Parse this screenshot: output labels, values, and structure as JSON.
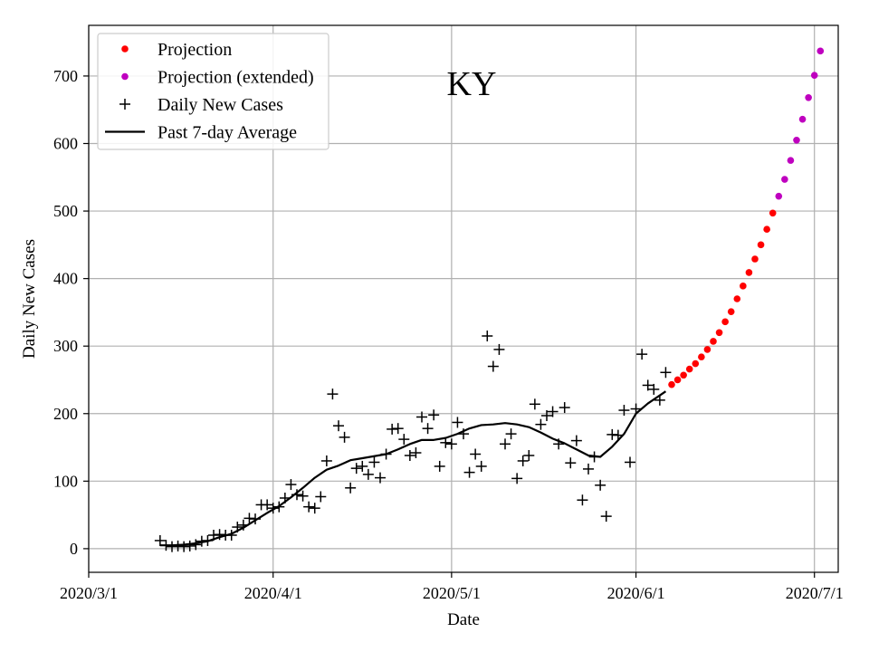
{
  "chart_data": {
    "type": "scatter",
    "title": "KY",
    "xlabel": "Date",
    "ylabel": "Daily New Cases",
    "grid": true,
    "legend_position": "top-left",
    "x_ticks": [
      "2020/3/1",
      "2020/4/1",
      "2020/5/1",
      "2020/6/1",
      "2020/7/1"
    ],
    "y_ticks": [
      0,
      100,
      200,
      300,
      400,
      500,
      600,
      700
    ],
    "xlim": [
      "2020-03-01",
      "2020-07-05"
    ],
    "ylim": [
      -35,
      775
    ],
    "series": [
      {
        "name": "Daily New Cases",
        "kind": "scatter",
        "marker": "plus",
        "color": "#000000",
        "points": [
          [
            "2020-03-13",
            12
          ],
          [
            "2020-03-14",
            5
          ],
          [
            "2020-03-15",
            3
          ],
          [
            "2020-03-16",
            4
          ],
          [
            "2020-03-17",
            3
          ],
          [
            "2020-03-18",
            4
          ],
          [
            "2020-03-19",
            6
          ],
          [
            "2020-03-20",
            11
          ],
          [
            "2020-03-21",
            12
          ],
          [
            "2020-03-22",
            20
          ],
          [
            "2020-03-23",
            21
          ],
          [
            "2020-03-24",
            20
          ],
          [
            "2020-03-25",
            20
          ],
          [
            "2020-03-26",
            32
          ],
          [
            "2020-03-27",
            35
          ],
          [
            "2020-03-28",
            45
          ],
          [
            "2020-03-29",
            44
          ],
          [
            "2020-03-30",
            65
          ],
          [
            "2020-03-31",
            65
          ],
          [
            "2020-04-01",
            60
          ],
          [
            "2020-04-02",
            62
          ],
          [
            "2020-04-03",
            75
          ],
          [
            "2020-04-04",
            95
          ],
          [
            "2020-04-05",
            80
          ],
          [
            "2020-04-06",
            78
          ],
          [
            "2020-04-07",
            62
          ],
          [
            "2020-04-08",
            60
          ],
          [
            "2020-04-09",
            77
          ],
          [
            "2020-04-10",
            130
          ],
          [
            "2020-04-11",
            229
          ],
          [
            "2020-04-12",
            182
          ],
          [
            "2020-04-13",
            165
          ],
          [
            "2020-04-14",
            90
          ],
          [
            "2020-04-15",
            119
          ],
          [
            "2020-04-16",
            122
          ],
          [
            "2020-04-17",
            110
          ],
          [
            "2020-04-18",
            128
          ],
          [
            "2020-04-19",
            105
          ],
          [
            "2020-04-20",
            140
          ],
          [
            "2020-04-21",
            177
          ],
          [
            "2020-04-22",
            178
          ],
          [
            "2020-04-23",
            162
          ],
          [
            "2020-04-24",
            138
          ],
          [
            "2020-04-25",
            142
          ],
          [
            "2020-04-26",
            195
          ],
          [
            "2020-04-27",
            178
          ],
          [
            "2020-04-28",
            198
          ],
          [
            "2020-04-29",
            122
          ],
          [
            "2020-04-30",
            157
          ],
          [
            "2020-05-01",
            155
          ],
          [
            "2020-05-02",
            187
          ],
          [
            "2020-05-03",
            170
          ],
          [
            "2020-05-04",
            113
          ],
          [
            "2020-05-05",
            140
          ],
          [
            "2020-05-06",
            122
          ],
          [
            "2020-05-07",
            315
          ],
          [
            "2020-05-08",
            270
          ],
          [
            "2020-05-09",
            295
          ],
          [
            "2020-05-10",
            155
          ],
          [
            "2020-05-11",
            170
          ],
          [
            "2020-05-12",
            104
          ],
          [
            "2020-05-13",
            130
          ],
          [
            "2020-05-14",
            138
          ],
          [
            "2020-05-15",
            214
          ],
          [
            "2020-05-16",
            184
          ],
          [
            "2020-05-17",
            197
          ],
          [
            "2020-05-18",
            203
          ],
          [
            "2020-05-19",
            155
          ],
          [
            "2020-05-20",
            209
          ],
          [
            "2020-05-21",
            127
          ],
          [
            "2020-05-22",
            160
          ],
          [
            "2020-05-23",
            72
          ],
          [
            "2020-05-24",
            118
          ],
          [
            "2020-05-25",
            136
          ],
          [
            "2020-05-26",
            94
          ],
          [
            "2020-05-27",
            48
          ],
          [
            "2020-05-28",
            169
          ],
          [
            "2020-05-29",
            168
          ],
          [
            "2020-05-30",
            205
          ],
          [
            "2020-05-31",
            128
          ],
          [
            "2020-06-01",
            207
          ],
          [
            "2020-06-02",
            288
          ],
          [
            "2020-06-03",
            242
          ],
          [
            "2020-06-04",
            236
          ],
          [
            "2020-06-05",
            220
          ],
          [
            "2020-06-06",
            261
          ]
        ]
      },
      {
        "name": "Past 7-day Average",
        "kind": "line",
        "color": "#000000",
        "points": [
          [
            "2020-03-13",
            5
          ],
          [
            "2020-03-15",
            5
          ],
          [
            "2020-03-17",
            6
          ],
          [
            "2020-03-19",
            8
          ],
          [
            "2020-03-21",
            11
          ],
          [
            "2020-03-23",
            17
          ],
          [
            "2020-03-25",
            22
          ],
          [
            "2020-03-27",
            31
          ],
          [
            "2020-03-29",
            42
          ],
          [
            "2020-03-31",
            53
          ],
          [
            "2020-04-02",
            63
          ],
          [
            "2020-04-04",
            76
          ],
          [
            "2020-04-06",
            90
          ],
          [
            "2020-04-08",
            105
          ],
          [
            "2020-04-10",
            117
          ],
          [
            "2020-04-12",
            123
          ],
          [
            "2020-04-14",
            131
          ],
          [
            "2020-04-16",
            134
          ],
          [
            "2020-04-18",
            137
          ],
          [
            "2020-04-20",
            140
          ],
          [
            "2020-04-22",
            147
          ],
          [
            "2020-04-24",
            155
          ],
          [
            "2020-04-26",
            161
          ],
          [
            "2020-04-28",
            161
          ],
          [
            "2020-04-30",
            164
          ],
          [
            "2020-05-02",
            170
          ],
          [
            "2020-05-04",
            178
          ],
          [
            "2020-05-06",
            183
          ],
          [
            "2020-05-08",
            184
          ],
          [
            "2020-05-10",
            186
          ],
          [
            "2020-05-12",
            184
          ],
          [
            "2020-05-14",
            180
          ],
          [
            "2020-05-16",
            172
          ],
          [
            "2020-05-18",
            163
          ],
          [
            "2020-05-20",
            156
          ],
          [
            "2020-05-22",
            147
          ],
          [
            "2020-05-24",
            138
          ],
          [
            "2020-05-26",
            136
          ],
          [
            "2020-05-28",
            151
          ],
          [
            "2020-05-30",
            170
          ],
          [
            "2020-06-01",
            200
          ],
          [
            "2020-06-03",
            215
          ],
          [
            "2020-06-06",
            233
          ]
        ]
      },
      {
        "name": "Projection",
        "kind": "scatter",
        "marker": "dot",
        "color": "#ff0000",
        "points": [
          [
            "2020-06-07",
            243
          ],
          [
            "2020-06-08",
            250
          ],
          [
            "2020-06-09",
            257
          ],
          [
            "2020-06-10",
            266
          ],
          [
            "2020-06-11",
            274
          ],
          [
            "2020-06-12",
            284
          ],
          [
            "2020-06-13",
            295
          ],
          [
            "2020-06-14",
            307
          ],
          [
            "2020-06-15",
            320
          ],
          [
            "2020-06-16",
            336
          ],
          [
            "2020-06-17",
            351
          ],
          [
            "2020-06-18",
            370
          ],
          [
            "2020-06-19",
            389
          ],
          [
            "2020-06-20",
            409
          ],
          [
            "2020-06-21",
            429
          ],
          [
            "2020-06-22",
            450
          ],
          [
            "2020-06-23",
            473
          ],
          [
            "2020-06-24",
            497
          ]
        ]
      },
      {
        "name": "Projection (extended)",
        "kind": "scatter",
        "marker": "dot",
        "color": "#bf00bf",
        "points": [
          [
            "2020-06-25",
            522
          ],
          [
            "2020-06-26",
            547
          ],
          [
            "2020-06-27",
            575
          ],
          [
            "2020-06-28",
            605
          ],
          [
            "2020-06-29",
            636
          ],
          [
            "2020-06-30",
            668
          ],
          [
            "2020-07-01",
            701
          ],
          [
            "2020-07-02",
            737
          ]
        ]
      }
    ],
    "legend": [
      {
        "label": "Projection",
        "symbol": "dot",
        "color": "#ff0000"
      },
      {
        "label": "Projection (extended)",
        "symbol": "dot",
        "color": "#bf00bf"
      },
      {
        "label": "Daily New Cases",
        "symbol": "plus",
        "color": "#000000"
      },
      {
        "label": "Past 7-day Average",
        "symbol": "line",
        "color": "#000000"
      }
    ]
  }
}
